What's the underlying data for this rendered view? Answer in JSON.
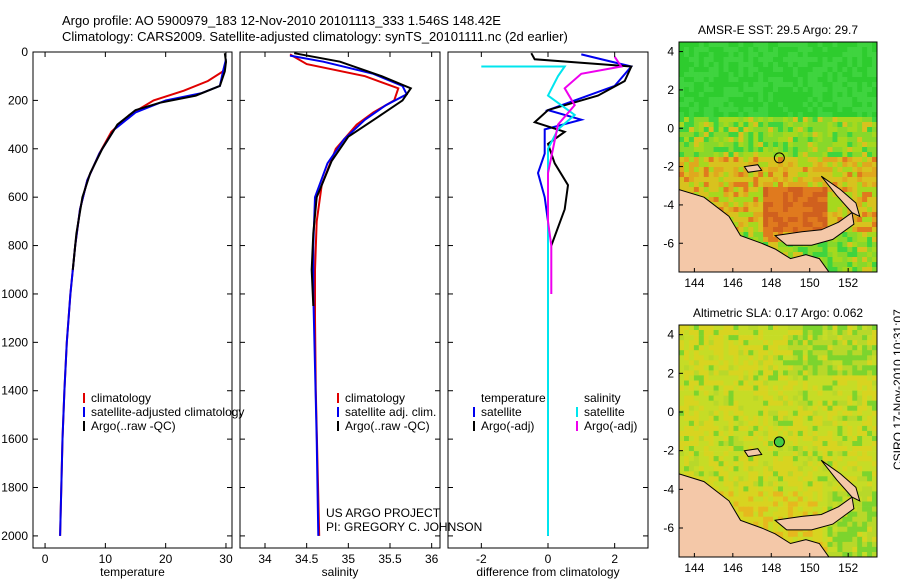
{
  "header": {
    "line1": "Argo profile: AO 5900979_183 12-Nov-2010 20101113_333 1.546S 148.42E",
    "line2": "Climatology: CARS2009. Satellite-adjusted climatology: synTS_20101111.nc (2d earlier)"
  },
  "credit": {
    "line1": "US ARGO PROJECT",
    "line2": "PI: GREGORY C. JOHNSON"
  },
  "side_label": "CSIRO 17-Nov-2010 10:31:07",
  "colors": {
    "climatology": "#e00000",
    "satellite": "#0000ee",
    "argo": "#000000",
    "sal_satellite": "#00e5ee",
    "sal_argo": "#ee00ee",
    "land": "#f4c8a8"
  },
  "chart_data": [
    {
      "type": "line",
      "name": "temperature-profile",
      "xlabel": "temperature",
      "xlim": [
        -2,
        31
      ],
      "ylim": [
        2050,
        0
      ],
      "xticks": [
        0,
        10,
        20,
        30
      ],
      "yticks": [
        0,
        200,
        400,
        600,
        800,
        1000,
        1200,
        1400,
        1600,
        1800,
        2000
      ],
      "legend": {
        "placement": "lower-right",
        "entries": [
          "climatology",
          "satellite-adjusted climatology",
          "Argo(..raw -QC)"
        ]
      },
      "series": [
        {
          "name": "climatology",
          "color": "#e00000",
          "points": [
            [
              30,
              40
            ],
            [
              29.5,
              80
            ],
            [
              27,
              120
            ],
            [
              23,
              160
            ],
            [
              18,
              200
            ],
            [
              14,
              260
            ],
            [
              11,
              330
            ],
            [
              9,
              420
            ],
            [
              7,
              530
            ],
            [
              5.8,
              650
            ],
            [
              5,
              800
            ],
            [
              4.2,
              1000
            ],
            [
              3.6,
              1200
            ],
            [
              3.2,
              1400
            ],
            [
              2.9,
              1600
            ],
            [
              2.7,
              1800
            ],
            [
              2.5,
              2000
            ]
          ]
        },
        {
          "name": "satellite-adjusted climatology",
          "color": "#0000ee",
          "points": [
            [
              30,
              30
            ],
            [
              29.5,
              80
            ],
            [
              29,
              140
            ],
            [
              26,
              170
            ],
            [
              20,
              200
            ],
            [
              15,
              250
            ],
            [
              11.5,
              320
            ],
            [
              9,
              420
            ],
            [
              7,
              530
            ],
            [
              5.8,
              650
            ],
            [
              5,
              800
            ],
            [
              4.2,
              1000
            ],
            [
              3.6,
              1200
            ],
            [
              3.2,
              1400
            ],
            [
              2.9,
              1600
            ],
            [
              2.7,
              1800
            ],
            [
              2.5,
              2000
            ]
          ]
        },
        {
          "name": "Argo(..raw -QC)",
          "color": "#000000",
          "points": [
            [
              29.8,
              5
            ],
            [
              30,
              40
            ],
            [
              29.8,
              80
            ],
            [
              29,
              140
            ],
            [
              25,
              180
            ],
            [
              19,
              210
            ],
            [
              15,
              240
            ],
            [
              12,
              300
            ],
            [
              9.5,
              400
            ],
            [
              7.5,
              500
            ],
            [
              6.2,
              600
            ],
            [
              5.2,
              750
            ],
            [
              4.6,
              900
            ]
          ]
        }
      ]
    },
    {
      "type": "line",
      "name": "salinity-profile",
      "xlabel": "salinity",
      "xlim": [
        33.7,
        36.1
      ],
      "ylim": [
        2050,
        0
      ],
      "xticks": [
        34,
        34.5,
        35,
        35.5,
        36
      ],
      "legend": {
        "placement": "lower-right",
        "entries": [
          "climatology",
          "satellite adj. clim.",
          "Argo(..raw -QC)"
        ]
      },
      "series": [
        {
          "name": "climatology",
          "color": "#e00000",
          "points": [
            [
              34.3,
              10
            ],
            [
              34.5,
              50
            ],
            [
              35.2,
              100
            ],
            [
              35.6,
              150
            ],
            [
              35.55,
              200
            ],
            [
              35.3,
              250
            ],
            [
              35.1,
              300
            ],
            [
              34.85,
              400
            ],
            [
              34.68,
              550
            ],
            [
              34.62,
              700
            ],
            [
              34.6,
              900
            ],
            [
              34.6,
              1100
            ],
            [
              34.61,
              1400
            ],
            [
              34.63,
              1700
            ],
            [
              34.65,
              2000
            ]
          ]
        },
        {
          "name": "satellite adj. clim.",
          "color": "#0000ee",
          "points": [
            [
              34.3,
              15
            ],
            [
              34.7,
              40
            ],
            [
              35.3,
              90
            ],
            [
              35.65,
              140
            ],
            [
              35.7,
              175
            ],
            [
              35.45,
              220
            ],
            [
              35.2,
              280
            ],
            [
              34.95,
              360
            ],
            [
              34.75,
              460
            ],
            [
              34.6,
              600
            ],
            [
              34.58,
              800
            ],
            [
              34.58,
              1000
            ],
            [
              34.6,
              1300
            ],
            [
              34.62,
              1600
            ],
            [
              34.64,
              2000
            ]
          ]
        },
        {
          "name": "Argo(..raw -QC)",
          "color": "#000000",
          "points": [
            [
              34.35,
              5
            ],
            [
              34.9,
              40
            ],
            [
              35.4,
              100
            ],
            [
              35.75,
              150
            ],
            [
              35.65,
              200
            ],
            [
              35.35,
              270
            ],
            [
              35.0,
              350
            ],
            [
              34.8,
              450
            ],
            [
              34.62,
              600
            ],
            [
              34.58,
              750
            ],
            [
              34.56,
              900
            ],
            [
              34.58,
              1050
            ]
          ]
        }
      ]
    },
    {
      "type": "line",
      "name": "difference-profile",
      "xlabel": "difference from climatology",
      "xlim": [
        -3,
        3
      ],
      "ylim": [
        2050,
        0
      ],
      "xticks": [
        -2,
        0,
        2
      ],
      "legend": {
        "placement": "lower-right",
        "entries": [
          "temperature",
          "satellite",
          "Argo(-adj)",
          "salinity",
          "satellite",
          "Argo(-adj)"
        ]
      },
      "series": [
        {
          "name": "temperature satellite",
          "color": "#0000ee",
          "points": [
            [
              1,
              10
            ],
            [
              2.5,
              60
            ],
            [
              2,
              140
            ],
            [
              0.8,
              200
            ],
            [
              0,
              240
            ],
            [
              1,
              280
            ],
            [
              -0.1,
              320
            ],
            [
              -0.1,
              420
            ],
            [
              -0.3,
              500
            ],
            [
              -0.1,
              600
            ],
            [
              0,
              700
            ],
            [
              0,
              900
            ],
            [
              0,
              1200
            ],
            [
              0,
              1500
            ],
            [
              0,
              1800
            ],
            [
              0,
              2000
            ]
          ]
        },
        {
          "name": "temperature Argo(-adj)",
          "color": "#000000",
          "points": [
            [
              -0.5,
              5
            ],
            [
              -0.4,
              30
            ],
            [
              2.5,
              60
            ],
            [
              2.3,
              120
            ],
            [
              1.5,
              180
            ],
            [
              0,
              240
            ],
            [
              -0.4,
              290
            ],
            [
              0.5,
              330
            ],
            [
              0,
              380
            ],
            [
              0.2,
              460
            ],
            [
              0.6,
              550
            ],
            [
              0.5,
              650
            ],
            [
              0.1,
              800
            ]
          ]
        },
        {
          "name": "salinity satellite",
          "color": "#00e5ee",
          "points": [
            [
              -2,
              60
            ],
            [
              0.5,
              60
            ],
            [
              0.3,
              100
            ],
            [
              0,
              180
            ],
            [
              0.8,
              260
            ],
            [
              0.3,
              320
            ],
            [
              0,
              400
            ],
            [
              0,
              600
            ],
            [
              0,
              800
            ],
            [
              0,
              1000
            ],
            [
              0,
              1400
            ],
            [
              0,
              2000
            ]
          ]
        },
        {
          "name": "salinity Argo(-adj)",
          "color": "#ee00ee",
          "points": [
            [
              2,
              20
            ],
            [
              2.2,
              60
            ],
            [
              1,
              90
            ],
            [
              0.5,
              150
            ],
            [
              0.8,
              220
            ],
            [
              0.3,
              300
            ],
            [
              0,
              500
            ],
            [
              0,
              700
            ],
            [
              0.1,
              800
            ],
            [
              0.1,
              1000
            ]
          ]
        }
      ]
    },
    {
      "type": "heatmap",
      "name": "sst-map",
      "title": "AMSR-E SST: 29.5 Argo: 29.7",
      "xlim": [
        143.2,
        153.5
      ],
      "ylim": [
        -7.5,
        4.5
      ],
      "xticks": [
        144,
        146,
        148,
        150,
        152
      ],
      "yticks": [
        4,
        2,
        0,
        -2,
        -4,
        -6
      ],
      "float_position": [
        148.42,
        -1.546
      ]
    },
    {
      "type": "heatmap",
      "name": "sla-map",
      "title": "Altimetric SLA: 0.17 Argo: 0.062",
      "xlim": [
        143.2,
        153.5
      ],
      "ylim": [
        -7.5,
        4.5
      ],
      "xticks": [
        144,
        146,
        148,
        150,
        152
      ],
      "yticks": [
        4,
        2,
        0,
        -2,
        -4,
        -6
      ],
      "float_position": [
        148.42,
        -1.546
      ]
    }
  ]
}
